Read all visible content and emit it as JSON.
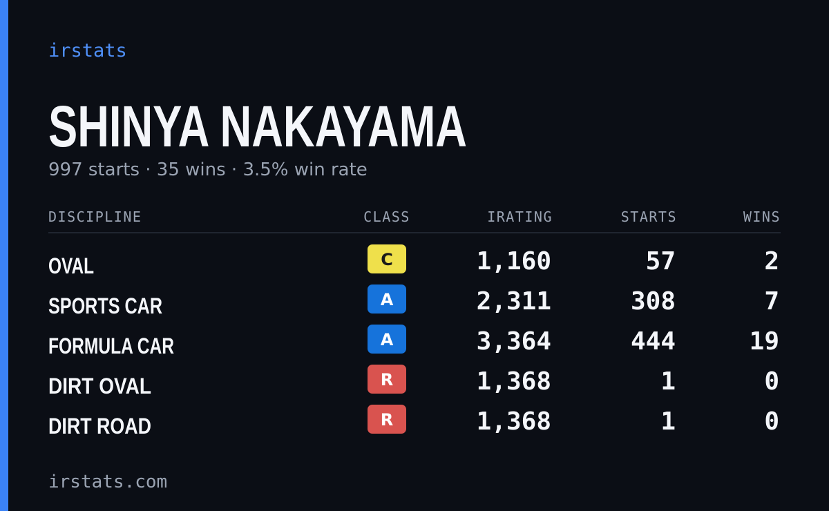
{
  "brand": "irstats",
  "driver": {
    "name": "SHINYA NAKAYAMA",
    "summary": "997 starts · 35 wins · 3.5% win rate"
  },
  "table": {
    "headers": [
      "DISCIPLINE",
      "CLASS",
      "IRATING",
      "STARTS",
      "WINS"
    ],
    "rows": [
      {
        "discipline": "OVAL",
        "class": "C",
        "class_color": "#efe04b",
        "irating": "1,160",
        "starts": "57",
        "wins": "2"
      },
      {
        "discipline": "SPORTS CAR",
        "class": "A",
        "class_color": "#1673db",
        "irating": "2,311",
        "starts": "308",
        "wins": "7"
      },
      {
        "discipline": "FORMULA CAR",
        "class": "A",
        "class_color": "#1673db",
        "irating": "3,364",
        "starts": "444",
        "wins": "19"
      },
      {
        "discipline": "DIRT OVAL",
        "class": "R",
        "class_color": "#d9534f",
        "irating": "1,368",
        "starts": "1",
        "wins": "0"
      },
      {
        "discipline": "DIRT ROAD",
        "class": "R",
        "class_color": "#d9534f",
        "irating": "1,368",
        "starts": "1",
        "wins": "0"
      }
    ]
  },
  "footer": "irstats.com"
}
